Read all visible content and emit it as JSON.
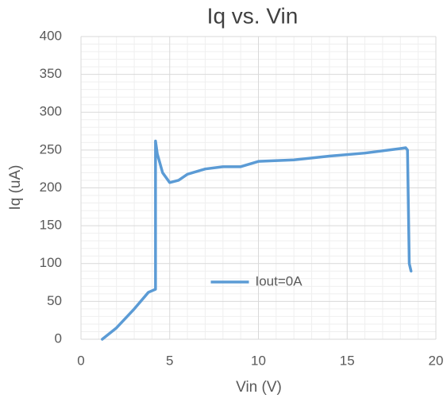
{
  "chart_data": {
    "type": "line",
    "title": "Iq vs. Vin",
    "x_label": "Vin (V)",
    "y_label": "Iq (uA)",
    "x": [
      1.2,
      2,
      3,
      3.8,
      4.2,
      4.2,
      4.3,
      4.6,
      5,
      5.5,
      6,
      7,
      8,
      9,
      10,
      12,
      14,
      16,
      18,
      18.3,
      18.4,
      18.5,
      18.6
    ],
    "series": [
      {
        "name": "Iout=0A",
        "color": "#5b9bd5",
        "values": [
          0,
          15,
          40,
          62,
          66,
          262,
          245,
          220,
          207,
          210,
          218,
          225,
          228,
          228,
          235,
          237,
          242,
          246,
          252,
          253,
          250,
          100,
          90
        ]
      }
    ],
    "xlim": [
      0,
      20
    ],
    "xticks": [
      0,
      5,
      10,
      15,
      20
    ],
    "ylim": [
      0,
      400
    ],
    "yticks": [
      0,
      50,
      100,
      150,
      200,
      250,
      300,
      350,
      400
    ],
    "grid": true,
    "minor_grid": true,
    "minor_divisions": 5,
    "legend": "center"
  }
}
